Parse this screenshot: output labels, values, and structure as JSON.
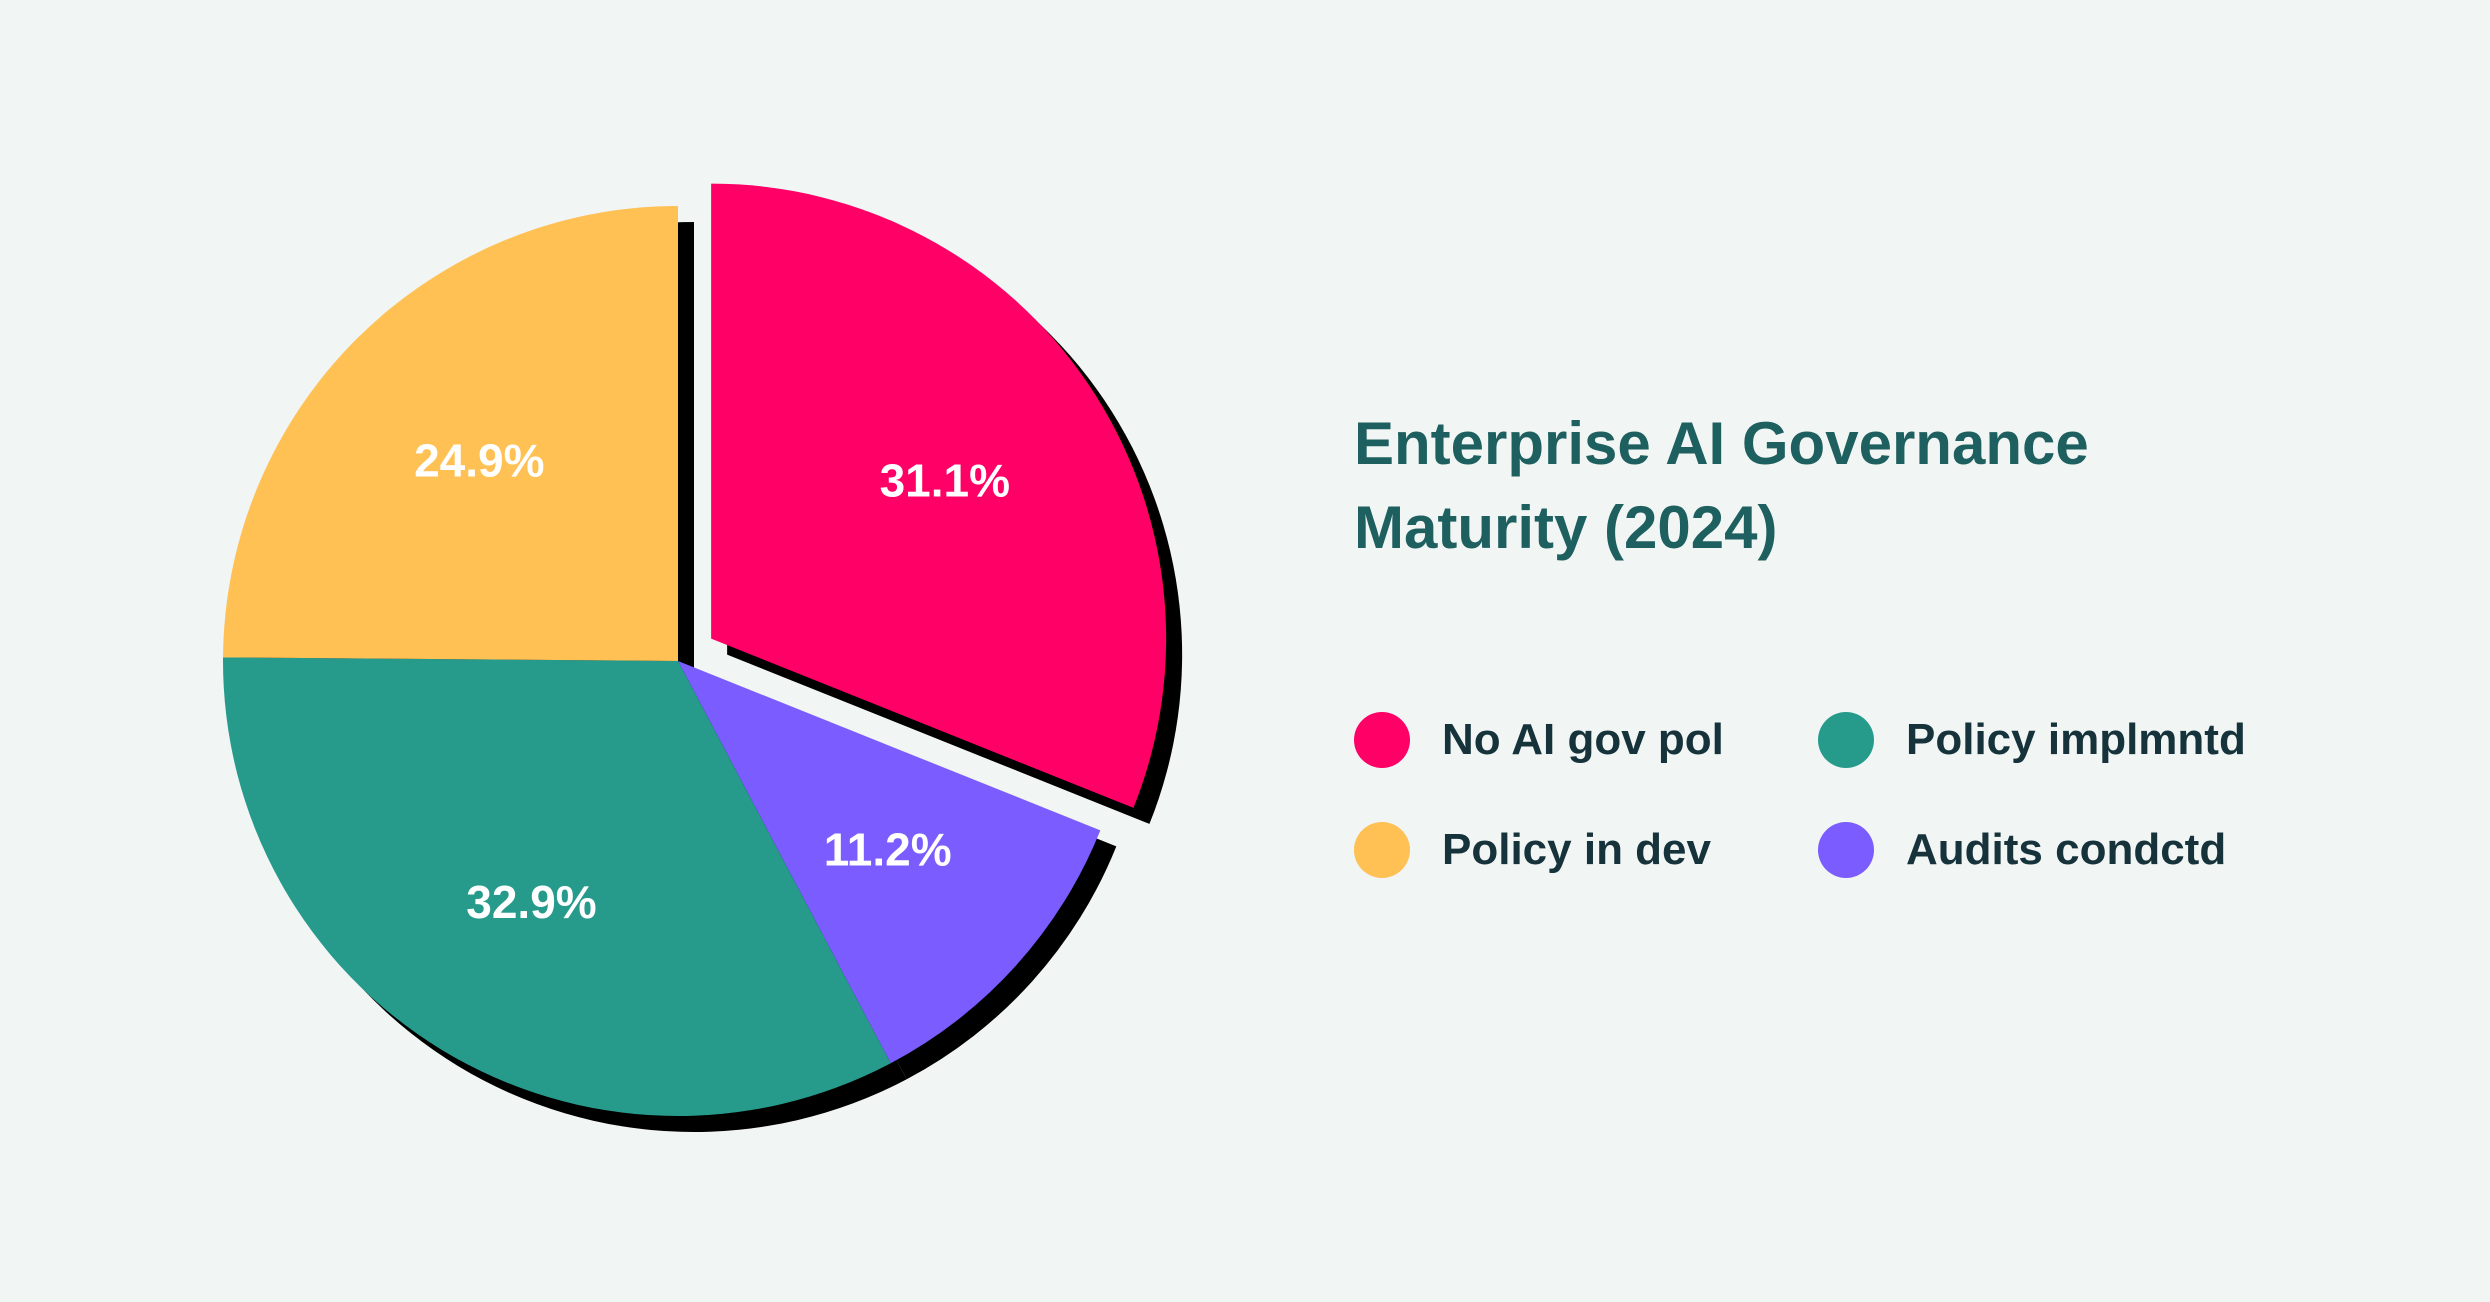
{
  "chart_data": {
    "type": "pie",
    "title": "Enterprise AI Governance Maturity (2024)",
    "slices": [
      {
        "label": "No AI gov pol",
        "value": 31.1,
        "value_label": "31.1%",
        "color": "#ff0066",
        "exploded": true
      },
      {
        "label": "Audits condctd",
        "value": 11.2,
        "value_label": "11.2%",
        "color": "#7a5cff",
        "exploded": false
      },
      {
        "label": "Policy implmntd",
        "value": 32.9,
        "value_label": "32.9%",
        "color": "#269b8c",
        "exploded": false
      },
      {
        "label": "Policy in dev",
        "value": 24.9,
        "value_label": "24.9%",
        "color": "#ffc054",
        "exploded": false
      }
    ],
    "start_angle": "12 o'clock",
    "direction": "clockwise",
    "legend_position": "right",
    "legend": [
      {
        "label": "No AI gov pol",
        "color": "#ff0066"
      },
      {
        "label": "Policy implmntd",
        "color": "#269b8c"
      },
      {
        "label": "Policy in dev",
        "color": "#ffc054"
      },
      {
        "label": "Audits condctd",
        "color": "#7a5cff"
      }
    ],
    "shadow_color": "#000000",
    "title_color": "#1e5f5f",
    "background": "#f1f5f4"
  }
}
